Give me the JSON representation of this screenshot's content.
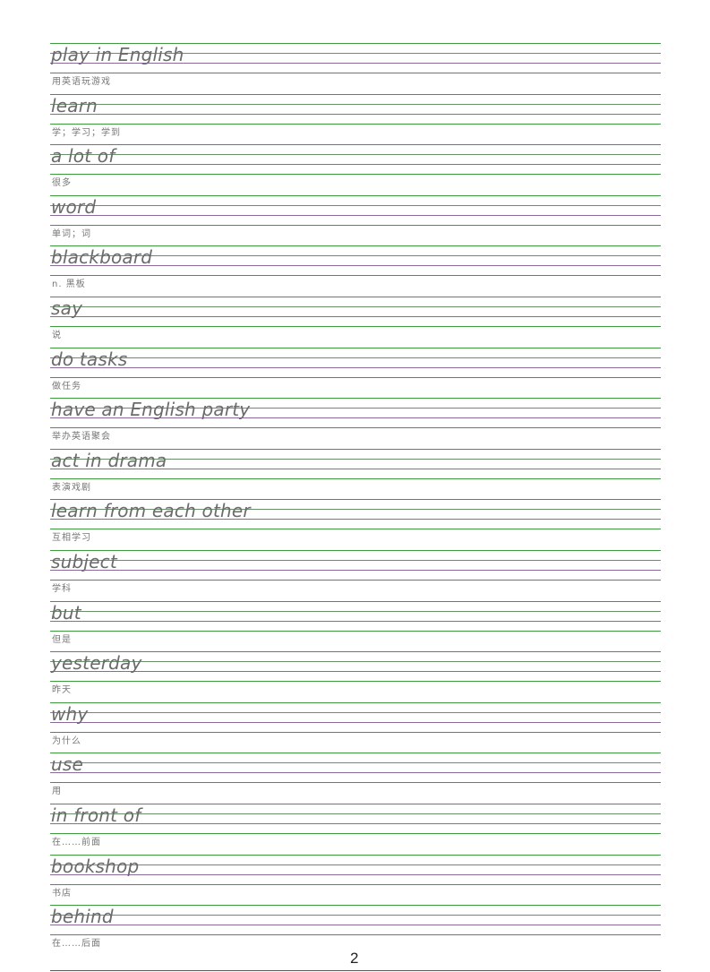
{
  "colors": {
    "main_line": "#3f9a3f",
    "middle_line": "#8a6a9a",
    "text": "#6b6b6b"
  },
  "entries": [
    {
      "en": "play in English",
      "zh": "用英语玩游戏"
    },
    {
      "en": "learn",
      "zh": "学；学习；学到"
    },
    {
      "en": "a lot of",
      "zh": "很多"
    },
    {
      "en": "word",
      "zh": "单词；词"
    },
    {
      "en": "blackboard",
      "zh": " n. 黑板"
    },
    {
      "en": "say",
      "zh": "说"
    },
    {
      "en": "do tasks",
      "zh": "做任务"
    },
    {
      "en": "have an English party",
      "zh": "举办英语聚会"
    },
    {
      "en": "act in drama",
      "zh": "表演戏剧"
    },
    {
      "en": "learn from each other",
      "zh": "互相学习"
    },
    {
      "en": "subject",
      "zh": "学科"
    },
    {
      "en": "but",
      "zh": "但是"
    },
    {
      "en": "yesterday",
      "zh": "昨天"
    },
    {
      "en": "why",
      "zh": "为什么"
    },
    {
      "en": "use",
      "zh": "用"
    },
    {
      "en": "in front of",
      "zh": "在……前面"
    },
    {
      "en": "bookshop",
      "zh": "书店"
    },
    {
      "en": "behind",
      "zh": "在……后面"
    }
  ],
  "page_number": "2"
}
